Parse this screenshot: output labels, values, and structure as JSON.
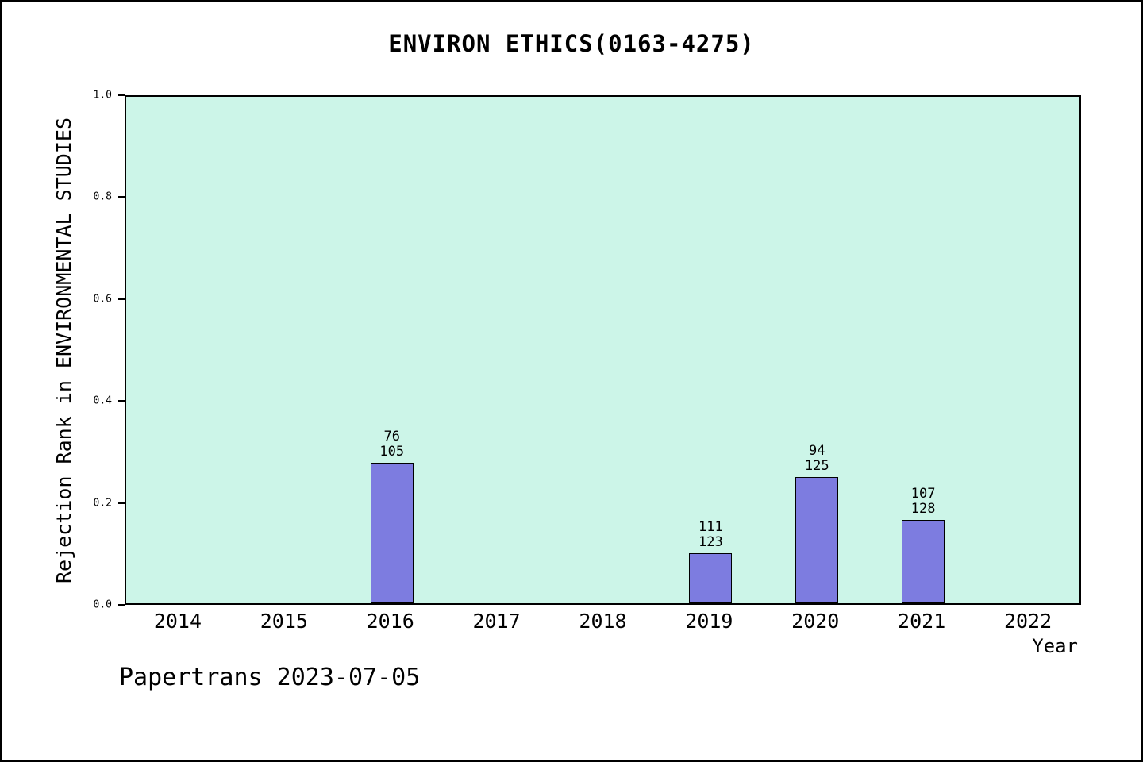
{
  "chart_data": {
    "type": "bar",
    "title": "ENVIRON ETHICS(0163-4275)",
    "xlabel": "Year",
    "ylabel": "Rejection Rank in ENVIRONMENTAL STUDIES",
    "footer": "Papertrans 2023-07-05",
    "categories": [
      "2014",
      "2015",
      "2016",
      "2017",
      "2018",
      "2019",
      "2020",
      "2021",
      "2022"
    ],
    "y_ticks": [
      0.0,
      0.2,
      0.4,
      0.6,
      0.8,
      1.0
    ],
    "ylim": [
      0.0,
      1.0
    ],
    "grid": false,
    "bars": [
      {
        "category": "2016",
        "label_top": "76",
        "label_bottom": "105",
        "value": 0.276
      },
      {
        "category": "2019",
        "label_top": "111",
        "label_bottom": "123",
        "value": 0.098
      },
      {
        "category": "2020",
        "label_top": "94",
        "label_bottom": "125",
        "value": 0.248
      },
      {
        "category": "2021",
        "label_top": "107",
        "label_bottom": "128",
        "value": 0.164
      }
    ],
    "bar_color": "#7d7ce0",
    "bar_edge_color": "#000000",
    "plot_bg": "#ccf5e8"
  }
}
